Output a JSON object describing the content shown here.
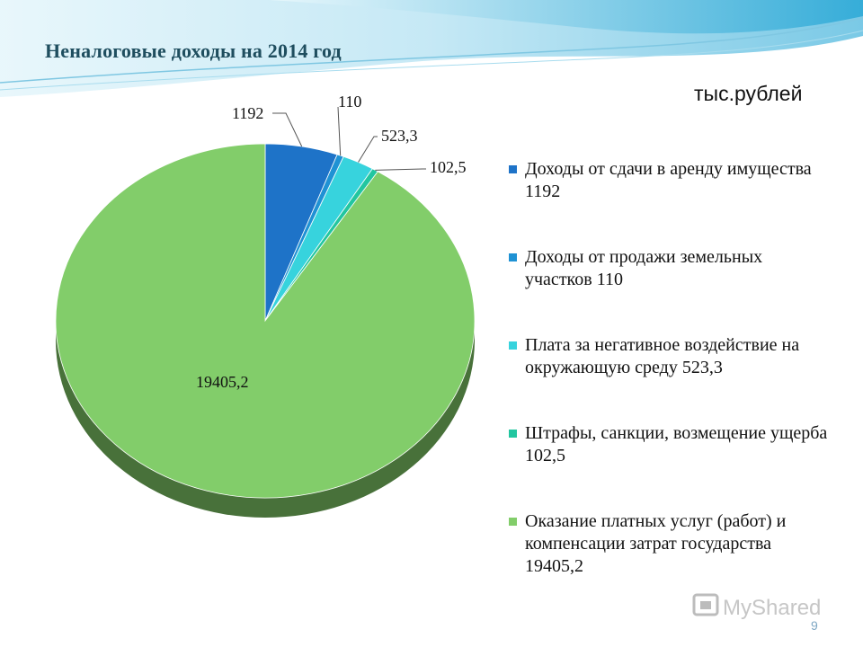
{
  "slide": {
    "title": "Неналоговые доходы на 2014 год",
    "unit": "тыс.рублей",
    "page_number": "9",
    "watermark": "MyShared"
  },
  "chart_data": {
    "type": "pie",
    "title": "",
    "slices": [
      {
        "label": "1192",
        "value": 1192,
        "color": "#1e73c8"
      },
      {
        "label": "110",
        "value": 110,
        "color": "#1f92d4"
      },
      {
        "label": "523,3",
        "value": 523.3,
        "color": "#37d3dd"
      },
      {
        "label": "102,5",
        "value": 102.5,
        "color": "#22c6a0"
      },
      {
        "label": "19405,2",
        "value": 19405.2,
        "color": "#82cd6a"
      }
    ],
    "legend": {
      "placement": "right",
      "entries": [
        "Доходы от сдачи в аренду имущества 1192",
        "Доходы от продажи земельных участков 110",
        "Плата за негативное воздействие на окружающую среду 523,3",
        "Штрафы, санкции, возмещение ущерба 102,5",
        "Оказание платных услуг (работ) и компенсации затрат государства 19405,2"
      ]
    }
  }
}
